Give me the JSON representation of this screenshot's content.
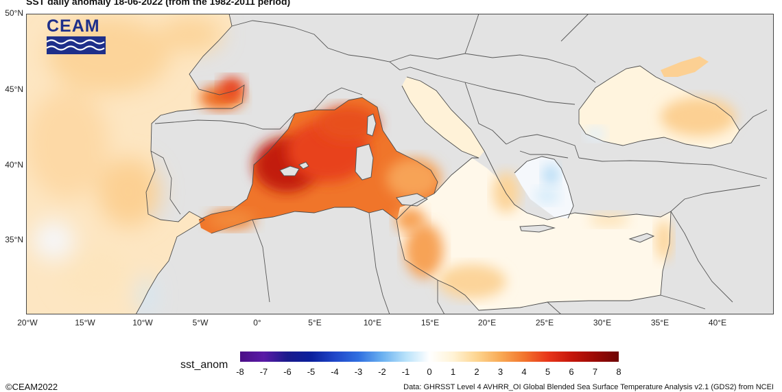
{
  "title": "SST daily anomaly 18-06-2022 (from the 1982-2011 period)",
  "logo": {
    "text": "CEAM"
  },
  "map": {
    "lat_range": [
      30,
      50
    ],
    "lon_range": [
      -20,
      45
    ],
    "lat_ticks": [
      "50°N",
      "45°N",
      "40°N",
      "35°N"
    ],
    "lon_ticks": [
      "20°W",
      "15°W",
      "10°W",
      "5°W",
      "0°",
      "5°E",
      "10°E",
      "15°E",
      "20°E",
      "25°E",
      "30°E",
      "35°E",
      "40°E"
    ],
    "colors": {
      "land": "#e3e3e3",
      "border": "#555555",
      "frame": "#444444"
    }
  },
  "colorbar": {
    "label": "sst_anom",
    "ticks": [
      "-8",
      "-7",
      "-6",
      "-5",
      "-4",
      "-3",
      "-2",
      "-1",
      "0",
      "1",
      "2",
      "3",
      "4",
      "5",
      "6",
      "7",
      "8"
    ],
    "colors": [
      "#4b0e86",
      "#5a1aa6",
      "#1a1a8c",
      "#0a1f9c",
      "#1f46c8",
      "#2f6fe0",
      "#6ab0f0",
      "#b8e2fa",
      "#ffffff",
      "#fff3d6",
      "#fdd590",
      "#f8aa55",
      "#f2752d",
      "#e8361a",
      "#c5160b",
      "#9b0a05",
      "#6e0505"
    ]
  },
  "footer": {
    "copyright": "©CEAM2022",
    "source": "Data: GHRSST Level 4 AVHRR_OI Global Blended Sea Surface Temperature Analysis v2.1 (GDS2) from NCEI"
  }
}
